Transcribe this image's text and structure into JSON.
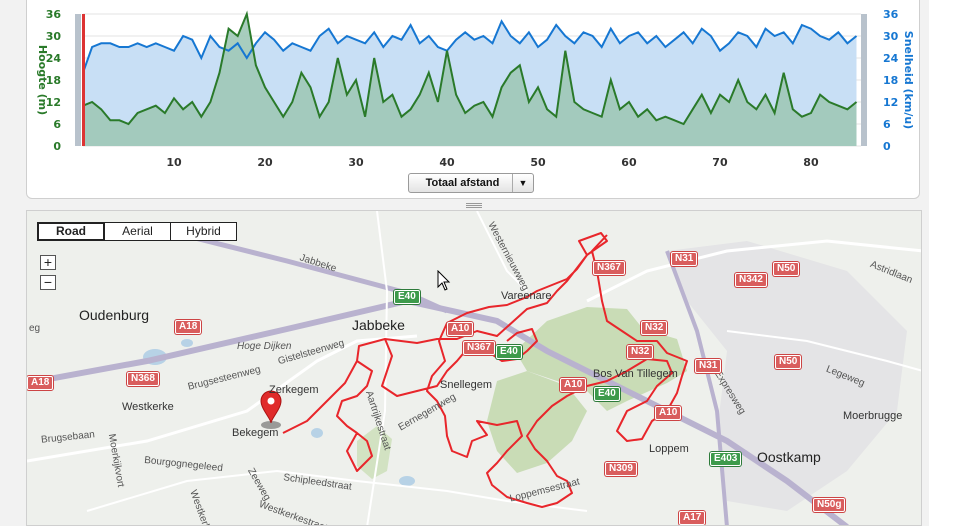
{
  "chart": {
    "left_axis_label": "Hoogte (m)",
    "right_axis_label": "Snelheid (km/u)",
    "y_ticks": [
      "36",
      "30",
      "24",
      "18",
      "12",
      "6",
      "0"
    ],
    "x_ticks": [
      "10",
      "20",
      "30",
      "40",
      "50",
      "60",
      "70",
      "80"
    ],
    "axis_select_label": "Totaal afstand",
    "colors": {
      "speed_line": "#1677d2",
      "speed_fill": "#c8dff5",
      "elev_line": "#2a7a2a",
      "elev_fill": "#9fc8b7"
    }
  },
  "chart_data": {
    "type": "area",
    "xlabel": "",
    "ylabel": "Hoogte (m)",
    "y2label": "Snelheid (km/u)",
    "xlim": [
      0,
      85.5
    ],
    "ylim": [
      0,
      36
    ],
    "y2lim": [
      0,
      36
    ],
    "series": [
      {
        "name": "Hoogte (m)",
        "axis": "left",
        "x": [
          0,
          1,
          2,
          3,
          4,
          5,
          6,
          7,
          8,
          9,
          10,
          11,
          12,
          13,
          14,
          15,
          16,
          17,
          18,
          19,
          20,
          21,
          22,
          23,
          24,
          25,
          26,
          27,
          28,
          29,
          30,
          31,
          32,
          33,
          34,
          35,
          36,
          37,
          38,
          39,
          40,
          41,
          42,
          43,
          44,
          45,
          46,
          47,
          48,
          49,
          50,
          51,
          52,
          53,
          54,
          55,
          56,
          57,
          58,
          59,
          60,
          61,
          62,
          63,
          64,
          65,
          66,
          67,
          68,
          69,
          70,
          71,
          72,
          73,
          74,
          75,
          76,
          77,
          78,
          79,
          80,
          81,
          82,
          83,
          84,
          85
        ],
        "values": [
          11,
          12,
          10,
          7,
          7,
          6,
          9,
          10,
          11,
          9,
          13,
          10,
          12,
          8,
          12,
          20,
          32,
          30,
          36,
          22,
          16,
          12,
          8,
          12,
          20,
          16,
          8,
          12,
          24,
          14,
          18,
          8,
          24,
          12,
          14,
          8,
          10,
          14,
          20,
          12,
          26,
          14,
          9,
          11,
          12,
          8,
          16,
          20,
          22,
          12,
          16,
          10,
          8,
          26,
          12,
          10,
          9,
          8,
          18,
          10,
          12,
          8,
          10,
          7,
          8,
          7,
          6,
          10,
          14,
          9,
          14,
          12,
          18,
          12,
          10,
          14,
          9,
          20,
          10,
          8,
          9,
          14,
          12,
          11,
          10,
          12
        ]
      },
      {
        "name": "Snelheid (km/u)",
        "axis": "right",
        "x": [
          0,
          1,
          2,
          3,
          4,
          5,
          6,
          7,
          8,
          9,
          10,
          11,
          12,
          13,
          14,
          15,
          16,
          17,
          18,
          19,
          20,
          21,
          22,
          23,
          24,
          25,
          26,
          27,
          28,
          29,
          30,
          31,
          32,
          33,
          34,
          35,
          36,
          37,
          38,
          39,
          40,
          41,
          42,
          43,
          44,
          45,
          46,
          47,
          48,
          49,
          50,
          51,
          52,
          53,
          54,
          55,
          56,
          57,
          58,
          59,
          60,
          61,
          62,
          63,
          64,
          65,
          66,
          67,
          68,
          69,
          70,
          71,
          72,
          73,
          74,
          75,
          76,
          77,
          78,
          79,
          80,
          81,
          82,
          83,
          84,
          85
        ],
        "values": [
          20,
          27,
          28,
          28,
          27,
          27,
          28,
          27,
          28,
          27,
          26,
          30,
          29,
          24,
          30,
          27,
          26,
          28,
          24,
          28,
          31,
          29,
          26,
          28,
          27,
          26,
          30,
          32,
          28,
          30,
          29,
          28,
          31,
          27,
          30,
          29,
          33,
          28,
          30,
          27,
          26,
          29,
          31,
          29,
          30,
          28,
          34,
          30,
          28,
          31,
          27,
          29,
          33,
          30,
          28,
          31,
          30,
          27,
          32,
          28,
          30,
          31,
          28,
          30,
          27,
          29,
          31,
          28,
          32,
          30,
          26,
          28,
          31,
          30,
          27,
          32,
          30,
          31,
          28,
          33,
          32,
          30,
          29,
          31,
          28,
          30
        ]
      }
    ]
  },
  "map": {
    "map_types": [
      "Road",
      "Aerial",
      "Hybrid"
    ],
    "active_map_type": "Road",
    "zoom_in": "+",
    "zoom_out": "−",
    "towns": [
      "Oudenburg",
      "Jabbeke",
      "Oostkamp"
    ],
    "places": [
      "Vareenare",
      "Snellegem",
      "Zerkegem",
      "Westkerke",
      "Bekegem",
      "Loppem",
      "Moerbrugge",
      "Bos Van Tillegem",
      "Hoge Dijken"
    ],
    "streets": [
      "Jabbeke",
      "Gistelsteenweg",
      "Brugsesteenweg",
      "Brugsebaan",
      "Moerkijkvort",
      "Bourgognegeleed",
      "Schipleedstraat",
      "Zeeweg",
      "Westernieuwweg",
      "Eernegemweg",
      "Aartrijkestraat",
      "Loppemsestraat",
      "Legeweg",
      "Expresweg",
      "Astridlaan",
      "Westkerkestraat",
      "Westkerke",
      "eg"
    ],
    "roads": [
      "N367",
      "N31",
      "N342",
      "N50",
      "A18",
      "A10",
      "N32",
      "N368",
      "N309",
      "E403",
      "E40",
      "N50g",
      "A17"
    ],
    "marker": "map-marker"
  }
}
